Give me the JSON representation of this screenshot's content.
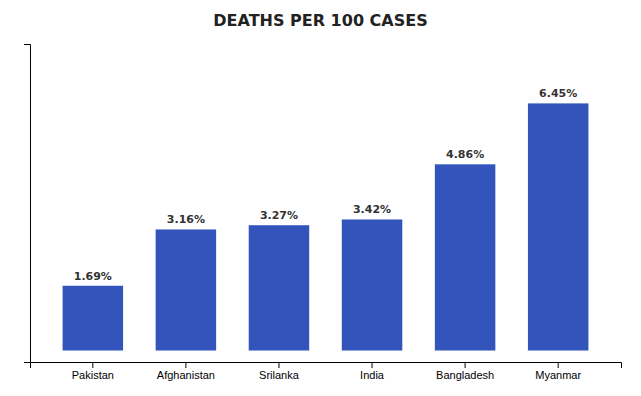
{
  "chart_data": {
    "type": "bar",
    "title": "DEATHS PER 100 CASES",
    "categories": [
      "Pakistan",
      "Afghanistan",
      "Srilanka",
      "India",
      "Bangladesh",
      "Myanmar"
    ],
    "values": [
      1.69,
      3.16,
      3.27,
      3.42,
      4.86,
      6.45
    ],
    "value_labels": [
      "1.69%",
      "3.16%",
      "3.27%",
      "3.42%",
      "4.86%",
      "6.45%"
    ],
    "color": "#3355bb",
    "ylim": [
      -0.3,
      8.0
    ],
    "data_labels": true,
    "tick_labels": "x",
    "grid": false
  }
}
